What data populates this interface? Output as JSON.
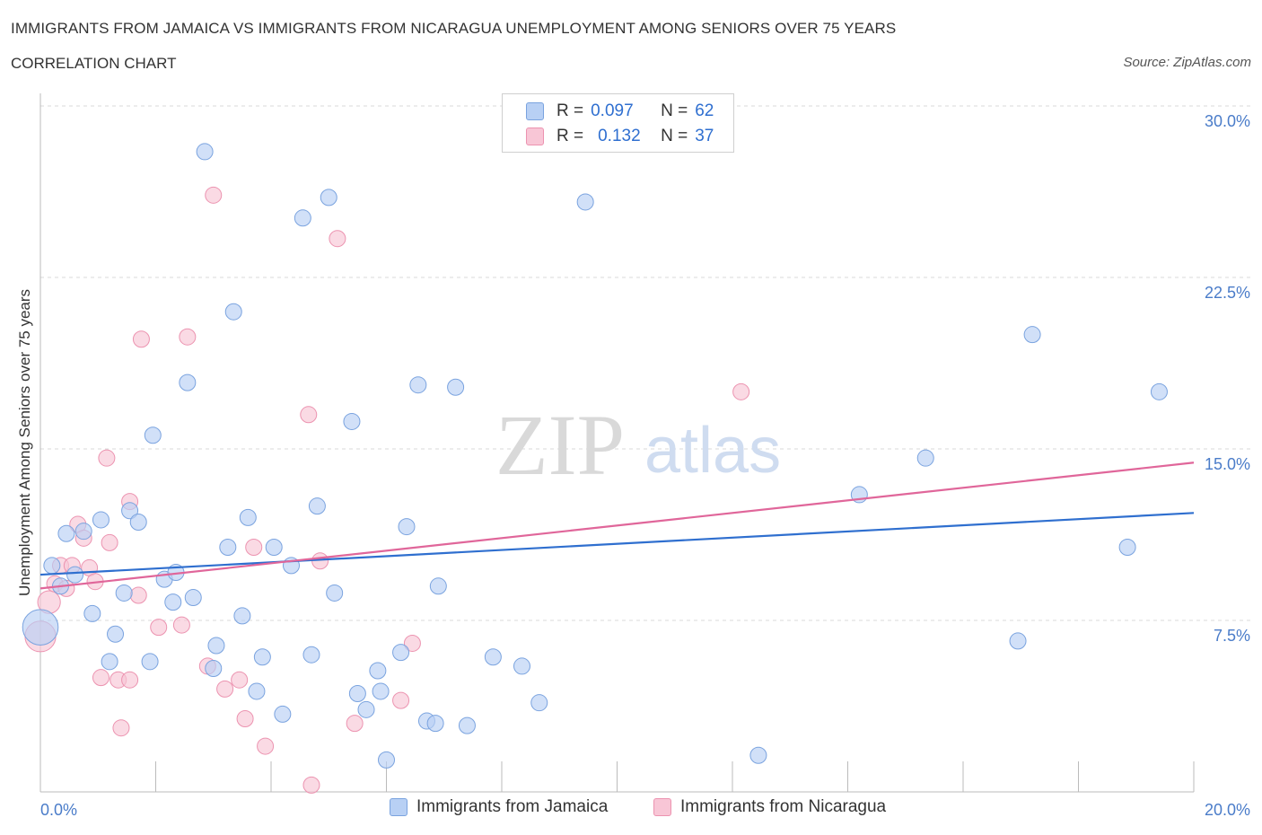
{
  "title": "IMMIGRANTS FROM JAMAICA VS IMMIGRANTS FROM NICARAGUA UNEMPLOYMENT AMONG SENIORS OVER 75 YEARS",
  "subtitle": "CORRELATION CHART",
  "source": "Source: ZipAtlas.com",
  "watermark": {
    "zip": "ZIP",
    "atlas": "atlas"
  },
  "legend_stats": [
    {
      "r_label": "R =",
      "r_value": "0.097",
      "n_label": "N =",
      "n_value": "62"
    },
    {
      "r_label": "R =",
      "r_value": "0.132",
      "n_label": "N =",
      "n_value": "37"
    }
  ],
  "colors": {
    "jamaica_fill": "#b8d0f4",
    "jamaica_stroke": "#7aa3df",
    "jamaica_line": "#2f6fcf",
    "nicaragua_fill": "#f8c6d6",
    "nicaragua_stroke": "#ec93b0",
    "nicaragua_line": "#e0669a",
    "axis_text": "#4a7cc9",
    "grid": "#d8d8d8"
  },
  "chart_data": {
    "type": "scatter",
    "title": "IMMIGRANTS FROM JAMAICA VS IMMIGRANTS FROM NICARAGUA UNEMPLOYMENT AMONG SENIORS OVER 75 YEARS",
    "subtitle": "CORRELATION CHART",
    "xlabel": "",
    "ylabel": "Unemployment Among Seniors over 75 years",
    "xlim": [
      0,
      20
    ],
    "ylim": [
      0,
      30
    ],
    "x_tick_labels": [
      "0.0%",
      "20.0%"
    ],
    "y_ticks": [
      7.5,
      15,
      22.5,
      30
    ],
    "y_tick_labels": [
      "7.5%",
      "15.0%",
      "22.5%",
      "30.0%"
    ],
    "grid": "horizontal dashed",
    "legend_position": "bottom",
    "series": [
      {
        "name": "Immigrants from Jamaica",
        "r": 0.097,
        "n": 62,
        "trend": {
          "x": [
            0,
            20
          ],
          "y": [
            9.5,
            12.2
          ]
        },
        "points": [
          [
            0.0,
            7.2,
            2.2
          ],
          [
            0.2,
            9.9,
            1
          ],
          [
            0.35,
            9.0,
            1
          ],
          [
            0.45,
            11.3,
            1
          ],
          [
            0.6,
            9.5,
            1
          ],
          [
            0.75,
            11.4,
            1
          ],
          [
            0.9,
            7.8,
            1
          ],
          [
            1.05,
            11.9,
            1
          ],
          [
            1.2,
            5.7,
            1
          ],
          [
            1.3,
            6.9,
            1
          ],
          [
            1.45,
            8.7,
            1
          ],
          [
            1.55,
            12.3,
            1
          ],
          [
            1.7,
            11.8,
            1
          ],
          [
            1.9,
            5.7,
            1
          ],
          [
            1.95,
            15.6,
            1
          ],
          [
            2.15,
            9.3,
            1
          ],
          [
            2.3,
            8.3,
            1
          ],
          [
            2.35,
            9.6,
            1
          ],
          [
            2.55,
            17.9,
            1
          ],
          [
            2.65,
            8.5,
            1
          ],
          [
            2.85,
            28.0,
            1
          ],
          [
            3.0,
            5.4,
            1
          ],
          [
            3.05,
            6.4,
            1
          ],
          [
            3.25,
            10.7,
            1
          ],
          [
            3.35,
            21.0,
            1
          ],
          [
            3.5,
            7.7,
            1
          ],
          [
            3.6,
            12.0,
            1
          ],
          [
            3.75,
            4.4,
            1
          ],
          [
            3.85,
            5.9,
            1
          ],
          [
            4.05,
            10.7,
            1
          ],
          [
            4.2,
            3.4,
            1
          ],
          [
            4.35,
            9.9,
            1
          ],
          [
            4.55,
            25.1,
            1
          ],
          [
            4.7,
            6.0,
            1
          ],
          [
            4.8,
            12.5,
            1
          ],
          [
            5.0,
            26.0,
            1
          ],
          [
            5.1,
            8.7,
            1
          ],
          [
            5.4,
            16.2,
            1
          ],
          [
            5.5,
            4.3,
            1
          ],
          [
            5.65,
            3.6,
            1
          ],
          [
            5.85,
            5.3,
            1
          ],
          [
            5.9,
            4.4,
            1
          ],
          [
            6.0,
            1.4,
            1
          ],
          [
            6.25,
            6.1,
            1
          ],
          [
            6.35,
            11.6,
            1
          ],
          [
            6.55,
            17.8,
            1
          ],
          [
            6.7,
            3.1,
            1
          ],
          [
            6.85,
            3.0,
            1
          ],
          [
            6.9,
            9.0,
            1
          ],
          [
            7.2,
            17.7,
            1
          ],
          [
            7.4,
            2.9,
            1
          ],
          [
            7.85,
            5.9,
            1
          ],
          [
            8.35,
            5.5,
            1
          ],
          [
            8.65,
            3.9,
            1
          ],
          [
            9.45,
            25.8,
            1
          ],
          [
            12.45,
            1.6,
            1
          ],
          [
            14.2,
            13.0,
            1
          ],
          [
            15.35,
            14.6,
            1
          ],
          [
            16.95,
            6.6,
            1
          ],
          [
            17.2,
            20.0,
            1
          ],
          [
            18.85,
            10.7,
            1
          ],
          [
            19.4,
            17.5,
            1
          ]
        ]
      },
      {
        "name": "Immigrants from Nicaragua",
        "r": 0.132,
        "n": 37,
        "trend": {
          "x": [
            0,
            20
          ],
          "y": [
            8.9,
            14.4
          ]
        },
        "points": [
          [
            0.0,
            6.8,
            1.9
          ],
          [
            0.15,
            8.3,
            1.4
          ],
          [
            0.25,
            9.1,
            1
          ],
          [
            0.35,
            9.9,
            1
          ],
          [
            0.45,
            8.9,
            1
          ],
          [
            0.55,
            9.9,
            1
          ],
          [
            0.65,
            11.7,
            1
          ],
          [
            0.75,
            11.1,
            1
          ],
          [
            0.85,
            9.8,
            1
          ],
          [
            0.95,
            9.2,
            1
          ],
          [
            1.05,
            5.0,
            1
          ],
          [
            1.15,
            14.6,
            1
          ],
          [
            1.2,
            10.9,
            1
          ],
          [
            1.35,
            4.9,
            1
          ],
          [
            1.4,
            2.8,
            1
          ],
          [
            1.55,
            12.7,
            1
          ],
          [
            1.55,
            4.9,
            1
          ],
          [
            1.7,
            8.6,
            1
          ],
          [
            1.75,
            19.8,
            1
          ],
          [
            2.05,
            7.2,
            1
          ],
          [
            2.45,
            7.3,
            1
          ],
          [
            2.55,
            19.9,
            1
          ],
          [
            2.9,
            5.5,
            1
          ],
          [
            3.0,
            26.1,
            1
          ],
          [
            3.2,
            4.5,
            1
          ],
          [
            3.45,
            4.9,
            1
          ],
          [
            3.55,
            3.2,
            1
          ],
          [
            3.7,
            10.7,
            1
          ],
          [
            3.9,
            2.0,
            1
          ],
          [
            4.65,
            16.5,
            1
          ],
          [
            4.7,
            0.3,
            1
          ],
          [
            4.85,
            10.1,
            1
          ],
          [
            5.15,
            24.2,
            1
          ],
          [
            5.45,
            3.0,
            1
          ],
          [
            6.25,
            4.0,
            1
          ],
          [
            6.45,
            6.5,
            1
          ],
          [
            12.15,
            17.5,
            1
          ]
        ]
      }
    ]
  }
}
